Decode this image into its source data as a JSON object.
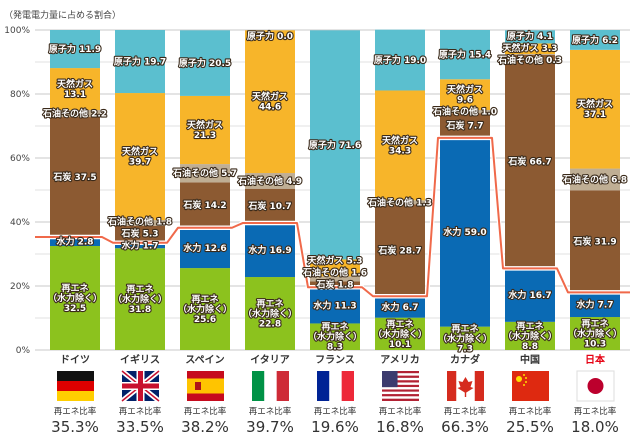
{
  "chart_data": {
    "type": "bar",
    "stacked": true,
    "subtitle": "（発電電力量に占める割合）",
    "ylim": [
      0,
      100
    ],
    "yticks": [
      "0%",
      "20%",
      "40%",
      "60%",
      "80%",
      "100%"
    ],
    "grid": true,
    "categories": [
      "ドイツ",
      "イギリス",
      "スペイン",
      "イタリア",
      "フランス",
      "アメリカ",
      "カナダ",
      "中国",
      "日本"
    ],
    "highlight_category": "日本",
    "highlight_color": "#e60012",
    "series": [
      {
        "name": "再エネ（水力除く）",
        "label_lines": [
          "再エネ",
          "（水力除く）"
        ],
        "color": "#8cc21e",
        "values": [
          32.5,
          31.8,
          25.6,
          22.8,
          8.3,
          10.1,
          7.3,
          8.8,
          10.3
        ]
      },
      {
        "name": "水力",
        "label_lines": [
          "水力"
        ],
        "color": "#0a6ab4",
        "values": [
          2.8,
          1.7,
          12.6,
          16.9,
          11.3,
          6.7,
          59.0,
          16.7,
          7.7
        ]
      },
      {
        "name": "石炭",
        "label_lines": [
          "石炭"
        ],
        "color": "#8c5a32",
        "values": [
          37.5,
          5.3,
          14.2,
          10.7,
          1.8,
          28.7,
          7.7,
          66.7,
          31.9
        ]
      },
      {
        "name": "石油その他",
        "label_lines": [
          "石油その他"
        ],
        "color": "#bfae94",
        "values": [
          2.2,
          1.8,
          5.7,
          4.9,
          1.6,
          1.3,
          1.0,
          0.3,
          6.8
        ]
      },
      {
        "name": "天然ガス",
        "label_lines": [
          "天然ガス"
        ],
        "color": "#f7b52a",
        "values": [
          13.1,
          39.7,
          21.3,
          44.6,
          5.3,
          34.3,
          9.6,
          3.3,
          37.1
        ]
      },
      {
        "name": "原子力",
        "label_lines": [
          "原子力"
        ],
        "color": "#5bbfcf",
        "values": [
          11.9,
          19.7,
          20.5,
          0.0,
          71.6,
          19.0,
          15.4,
          4.1,
          6.2
        ]
      }
    ],
    "renewable_ratio": {
      "label": "再エネ比率",
      "color": "#f0694a",
      "values": [
        35.3,
        33.5,
        38.2,
        39.7,
        19.6,
        16.8,
        66.3,
        25.5,
        18.0
      ],
      "display": [
        "35.3%",
        "33.5%",
        "38.2%",
        "39.7%",
        "19.6%",
        "16.8%",
        "66.3%",
        "25.5%",
        "18.0%"
      ]
    },
    "flags": [
      "germany-flag",
      "uk-flag",
      "spain-flag",
      "italy-flag",
      "france-flag",
      "usa-flag",
      "canada-flag",
      "china-flag",
      "japan-flag"
    ]
  }
}
